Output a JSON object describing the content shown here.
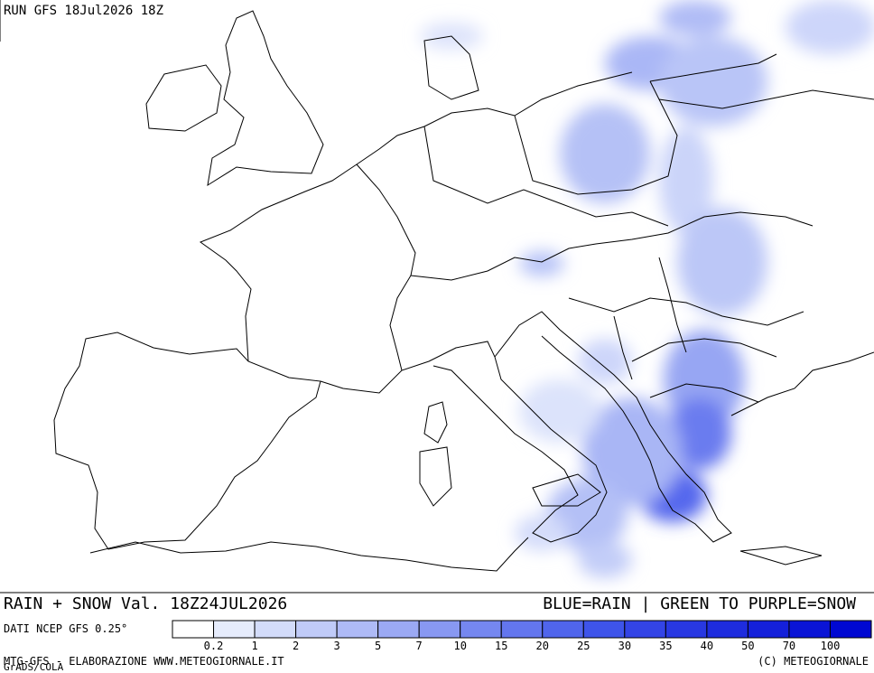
{
  "header": {
    "run": "RUN GFS 18Jul2026 18Z"
  },
  "footer": {
    "title": "RAIN + SNOW Val. 18Z24JUL2026",
    "key": "BLUE=RAIN | GREEN TO PURPLE=SNOW",
    "source": "DATI NCEP GFS 0.25°",
    "credit": "MTG-GFS - ELABORAZIONE WWW.METEOGIORNALE.IT",
    "grads": "GrADS/COLA",
    "copyright": "(C) METEOGIORNALE"
  },
  "legend": {
    "ticks": [
      0.2,
      1,
      2,
      3,
      5,
      7,
      10,
      15,
      20,
      25,
      30,
      35,
      40,
      50,
      70,
      100
    ],
    "colors": [
      "#ffffff",
      "#e6ecfc",
      "#d3dcfa",
      "#c0cbf8",
      "#aebaf6",
      "#9ba9f4",
      "#8898f2",
      "#7587f0",
      "#6376ee",
      "#5065ec",
      "#3e54ea",
      "#3344e6",
      "#2838e2",
      "#1e2cde",
      "#1420da",
      "#0a14d6",
      "#0008d2"
    ]
  }
}
